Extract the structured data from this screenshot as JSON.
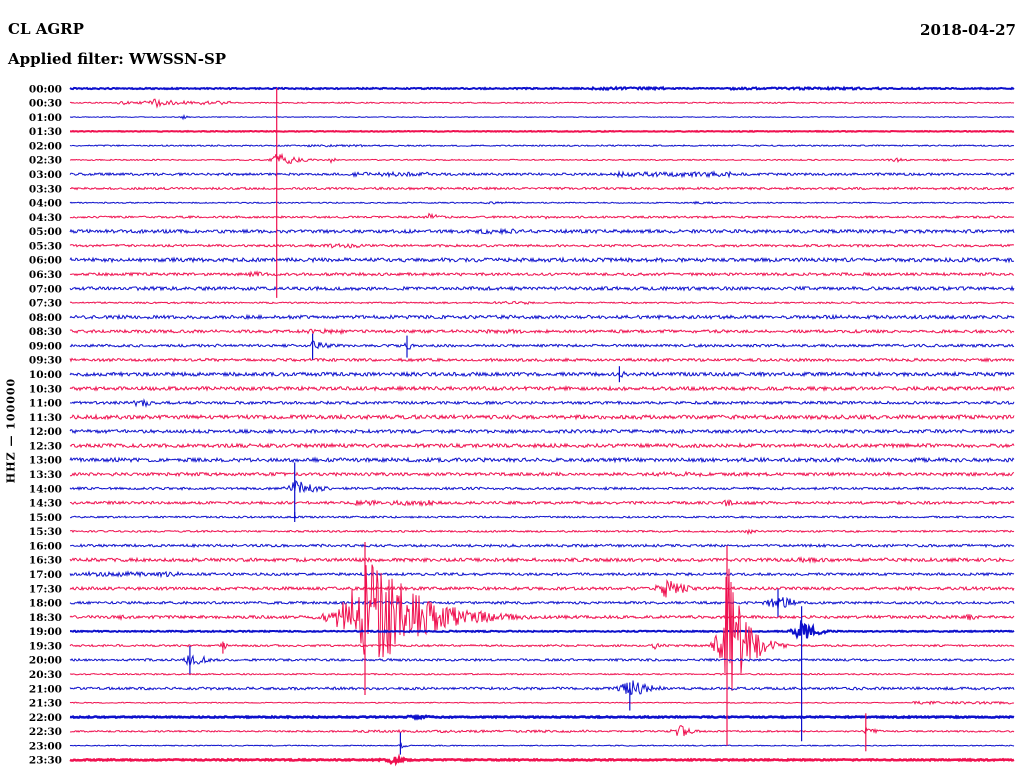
{
  "header": {
    "station": "CL AGRP",
    "filter_label": "Applied filter: WWSSN-SP",
    "date": "2018-04-27"
  },
  "y_axis_label": "HHZ — 100000",
  "colors": {
    "trace_blue": "#0d10cc",
    "trace_red": "#ef1150",
    "text": "#000000",
    "background": "#ffffff"
  },
  "chart_data": {
    "type": "line",
    "subtype": "helicorder-seismogram",
    "title": "CL AGRP",
    "station": "CL AGRP",
    "channel": "HHZ",
    "gain_scale": "100000",
    "date": "2018-04-27",
    "filter": "WWSSN-SP",
    "row_duration_minutes": 30,
    "x_range_fraction": [
      0,
      1
    ],
    "legend": "none",
    "grid": "off",
    "rows": [
      {
        "time": "00:00",
        "color": "blue",
        "noise": 0.6,
        "lw": 2,
        "segs": [
          [
            0.55,
            0.63,
            1.2
          ],
          [
            0.7,
            0.86,
            1.0
          ]
        ],
        "events": []
      },
      {
        "time": "00:30",
        "color": "red",
        "noise": 0.5,
        "segs": [
          [
            0.05,
            0.17,
            1.8
          ],
          [
            0.18,
            0.97,
            0.6
          ]
        ],
        "events": [
          {
            "p": 0.09,
            "a": 5,
            "r": 3,
            "d": 22
          }
        ]
      },
      {
        "time": "01:00",
        "color": "blue",
        "noise": 0.4,
        "segs": [],
        "events": [
          {
            "p": 0.12,
            "a": 2.2,
            "r": 2,
            "d": 5
          }
        ]
      },
      {
        "time": "01:30",
        "color": "red",
        "noise": 0.4,
        "lw": 2,
        "segs": [],
        "events": []
      },
      {
        "time": "02:00",
        "color": "blue",
        "noise": 0.7,
        "segs": [
          [
            0.25,
            0.31,
            1.1
          ]
        ],
        "events": []
      },
      {
        "time": "02:30",
        "color": "red",
        "noise": 0.6,
        "segs": [],
        "events": [
          {
            "p": 0.219,
            "a": 8,
            "r": 4,
            "d": 18,
            "su": 72,
            "sd": 138
          },
          {
            "p": 0.277,
            "a": 3.5,
            "r": 2,
            "d": 5
          },
          {
            "p": 0.873,
            "a": 2.5,
            "r": 5,
            "d": 12
          },
          {
            "p": 0.921,
            "a": 2.2,
            "r": 4,
            "d": 10
          }
        ]
      },
      {
        "time": "03:00",
        "color": "blue",
        "noise": 1.2,
        "segs": [
          [
            0.3,
            0.38,
            2.2
          ],
          [
            0.58,
            0.7,
            2.5
          ]
        ],
        "events": []
      },
      {
        "time": "03:30",
        "color": "red",
        "noise": 1.1,
        "segs": [],
        "events": []
      },
      {
        "time": "04:00",
        "color": "blue",
        "noise": 0.6,
        "segs": [
          [
            0.44,
            0.47,
            1.1
          ],
          [
            0.66,
            0.69,
            1.1
          ]
        ],
        "events": []
      },
      {
        "time": "04:30",
        "color": "red",
        "noise": 1.0,
        "segs": [],
        "events": [
          {
            "p": 0.379,
            "a": 4.5,
            "r": 5,
            "d": 12
          },
          {
            "p": 0.503,
            "a": 2,
            "r": 3,
            "d": 8
          }
        ]
      },
      {
        "time": "05:00",
        "color": "blue",
        "noise": 1.7,
        "segs": [
          [
            0.43,
            0.47,
            2.5
          ]
        ],
        "events": []
      },
      {
        "time": "05:30",
        "color": "red",
        "noise": 1.2,
        "segs": [
          [
            0.27,
            0.31,
            2.3
          ]
        ],
        "events": []
      },
      {
        "time": "06:00",
        "color": "blue",
        "noise": 1.9,
        "segs": [],
        "events": []
      },
      {
        "time": "06:30",
        "color": "red",
        "noise": 1.4,
        "segs": [],
        "events": [
          {
            "p": 0.194,
            "a": 4.5,
            "r": 8,
            "d": 14
          },
          {
            "p": 0.41,
            "a": 2.5,
            "r": 4,
            "d": 9
          }
        ]
      },
      {
        "time": "07:00",
        "color": "blue",
        "noise": 1.7,
        "segs": [],
        "events": []
      },
      {
        "time": "07:30",
        "color": "red",
        "noise": 0.8,
        "segs": [
          [
            0.45,
            0.49,
            1.4
          ]
        ],
        "events": []
      },
      {
        "time": "08:00",
        "color": "blue",
        "noise": 1.7,
        "segs": [],
        "events": []
      },
      {
        "time": "08:30",
        "color": "red",
        "noise": 1.5,
        "segs": [
          [
            0.24,
            0.29,
            2.2
          ],
          [
            0.44,
            0.48,
            2.1
          ]
        ],
        "events": []
      },
      {
        "time": "09:00",
        "color": "blue",
        "noise": 1.3,
        "segs": [],
        "events": [
          {
            "p": 0.257,
            "a": 5,
            "r": 3,
            "d": 18,
            "su": 12,
            "sd": 14
          },
          {
            "p": 0.357,
            "a": 4.5,
            "r": 3,
            "d": 14,
            "su": 10,
            "sd": 12
          }
        ]
      },
      {
        "time": "09:30",
        "color": "red",
        "noise": 1.4,
        "segs": [],
        "events": []
      },
      {
        "time": "10:00",
        "color": "blue",
        "noise": 1.8,
        "segs": [],
        "events": [
          {
            "p": 0.582,
            "a": 5,
            "r": 3,
            "d": 9,
            "su": 8,
            "sd": 8
          }
        ]
      },
      {
        "time": "10:30",
        "color": "red",
        "noise": 1.8,
        "segs": [],
        "events": []
      },
      {
        "time": "11:00",
        "color": "blue",
        "noise": 1.4,
        "segs": [],
        "events": [
          {
            "p": 0.074,
            "a": 7,
            "r": 5,
            "d": 10
          }
        ]
      },
      {
        "time": "11:30",
        "color": "red",
        "noise": 2.0,
        "segs": [],
        "events": []
      },
      {
        "time": "12:00",
        "color": "blue",
        "noise": 1.7,
        "segs": [],
        "events": []
      },
      {
        "time": "12:30",
        "color": "red",
        "noise": 1.8,
        "segs": [],
        "events": []
      },
      {
        "time": "13:00",
        "color": "blue",
        "noise": 1.9,
        "segs": [],
        "events": []
      },
      {
        "time": "13:30",
        "color": "red",
        "noise": 1.6,
        "segs": [
          [
            0.62,
            0.67,
            2.3
          ]
        ],
        "events": []
      },
      {
        "time": "14:00",
        "color": "blue",
        "noise": 1.2,
        "segs": [],
        "events": [
          {
            "p": 0.238,
            "a": 10,
            "r": 6,
            "d": 20,
            "su": 26,
            "sd": 30
          }
        ]
      },
      {
        "time": "14:30",
        "color": "red",
        "noise": 1.4,
        "segs": [
          [
            0.3,
            0.325,
            2.5
          ],
          [
            0.34,
            0.385,
            2.7
          ]
        ],
        "events": [
          {
            "p": 0.696,
            "a": 5,
            "r": 3,
            "d": 7
          },
          {
            "p": 0.51,
            "a": 2.5,
            "r": 3,
            "d": 7
          }
        ]
      },
      {
        "time": "15:00",
        "color": "blue",
        "noise": 0.9,
        "segs": [],
        "events": [
          {
            "p": 0.238,
            "a": 2,
            "r": 2,
            "d": 4,
            "su": 5,
            "sd": 5
          }
        ]
      },
      {
        "time": "15:30",
        "color": "red",
        "noise": 0.9,
        "segs": [],
        "events": [
          {
            "p": 0.718,
            "a": 3,
            "r": 4,
            "d": 9
          }
        ]
      },
      {
        "time": "16:00",
        "color": "blue",
        "noise": 1.3,
        "segs": [],
        "events": []
      },
      {
        "time": "16:30",
        "color": "red",
        "noise": 1.7,
        "segs": [
          [
            0.77,
            0.8,
            2.4
          ],
          [
            0.84,
            0.88,
            2.1
          ]
        ],
        "events": []
      },
      {
        "time": "17:00",
        "color": "blue",
        "noise": 1.3,
        "segs": [
          [
            0.02,
            0.115,
            2.4
          ]
        ],
        "events": []
      },
      {
        "time": "17:30",
        "color": "red",
        "noise": 1.5,
        "segs": [],
        "events": [
          {
            "p": 0.633,
            "a": 13,
            "r": 8,
            "d": 14
          }
        ]
      },
      {
        "time": "18:00",
        "color": "blue",
        "noise": 1.3,
        "segs": [],
        "events": [
          {
            "p": 0.75,
            "a": 12,
            "r": 8,
            "d": 12,
            "su": 14,
            "sd": 14
          }
        ]
      },
      {
        "time": "18:30",
        "color": "red",
        "noise": 1.5,
        "segs": [],
        "events": [
          {
            "p": 0.3125,
            "a": 75,
            "r": 14,
            "d": 45,
            "su": 75,
            "sd": 78
          },
          {
            "p": 0.053,
            "a": 3,
            "r": 5,
            "d": 9
          },
          {
            "p": 0.953,
            "a": 3.5,
            "r": 6,
            "d": 12
          }
        ]
      },
      {
        "time": "19:00",
        "color": "blue",
        "noise": 0.6,
        "lw": 2,
        "segs": [],
        "events": [
          {
            "p": 0.775,
            "a": 14,
            "r": 5,
            "d": 12,
            "su": 25,
            "sd": 110
          }
        ]
      },
      {
        "time": "19:30",
        "color": "red",
        "noise": 1.0,
        "segs": [],
        "events": [
          {
            "p": 0.696,
            "a": 95,
            "r": 5,
            "d": 15,
            "su": 100,
            "sd": 100
          },
          {
            "p": 0.62,
            "a": 4,
            "r": 5,
            "d": 10
          },
          {
            "p": 0.162,
            "a": 5,
            "r": 2,
            "d": 4,
            "su": 4,
            "sd": 8
          }
        ]
      },
      {
        "time": "20:00",
        "color": "blue",
        "noise": 1.1,
        "segs": [],
        "events": [
          {
            "p": 0.127,
            "a": 10,
            "r": 4,
            "d": 12,
            "su": 14,
            "sd": 14
          }
        ]
      },
      {
        "time": "20:30",
        "color": "red",
        "noise": 0.7,
        "segs": [],
        "events": []
      },
      {
        "time": "21:00",
        "color": "blue",
        "noise": 1.3,
        "segs": [],
        "events": [
          {
            "p": 0.593,
            "a": 11,
            "r": 8,
            "d": 18,
            "su": 6,
            "sd": 22
          }
        ]
      },
      {
        "time": "21:30",
        "color": "red",
        "noise": 0.5,
        "segs": [
          [
            0.893,
            1.0,
            1.4
          ]
        ],
        "events": []
      },
      {
        "time": "22:00",
        "color": "blue",
        "noise": 0.6,
        "lw": 2.5,
        "segs": [
          [
            0.355,
            0.385,
            1.3
          ]
        ],
        "events": []
      },
      {
        "time": "22:30",
        "color": "red",
        "noise": 0.8,
        "segs": [
          [
            0.3,
            0.55,
            1.2
          ]
        ],
        "events": [
          {
            "p": 0.646,
            "a": 7,
            "r": 6,
            "d": 12
          },
          {
            "p": 0.843,
            "a": 5,
            "r": 2,
            "d": 10,
            "su": 18,
            "sd": 20
          }
        ]
      },
      {
        "time": "23:00",
        "color": "blue",
        "noise": 0.5,
        "segs": [],
        "events": [
          {
            "p": 0.35,
            "a": 4,
            "r": 2,
            "d": 6,
            "su": 13,
            "sd": 9
          }
        ]
      },
      {
        "time": "23:30",
        "color": "red",
        "noise": 0.6,
        "lw": 2.5,
        "segs": [],
        "events": [
          {
            "p": 0.342,
            "a": 4,
            "r": 8,
            "d": 10
          }
        ]
      }
    ]
  }
}
